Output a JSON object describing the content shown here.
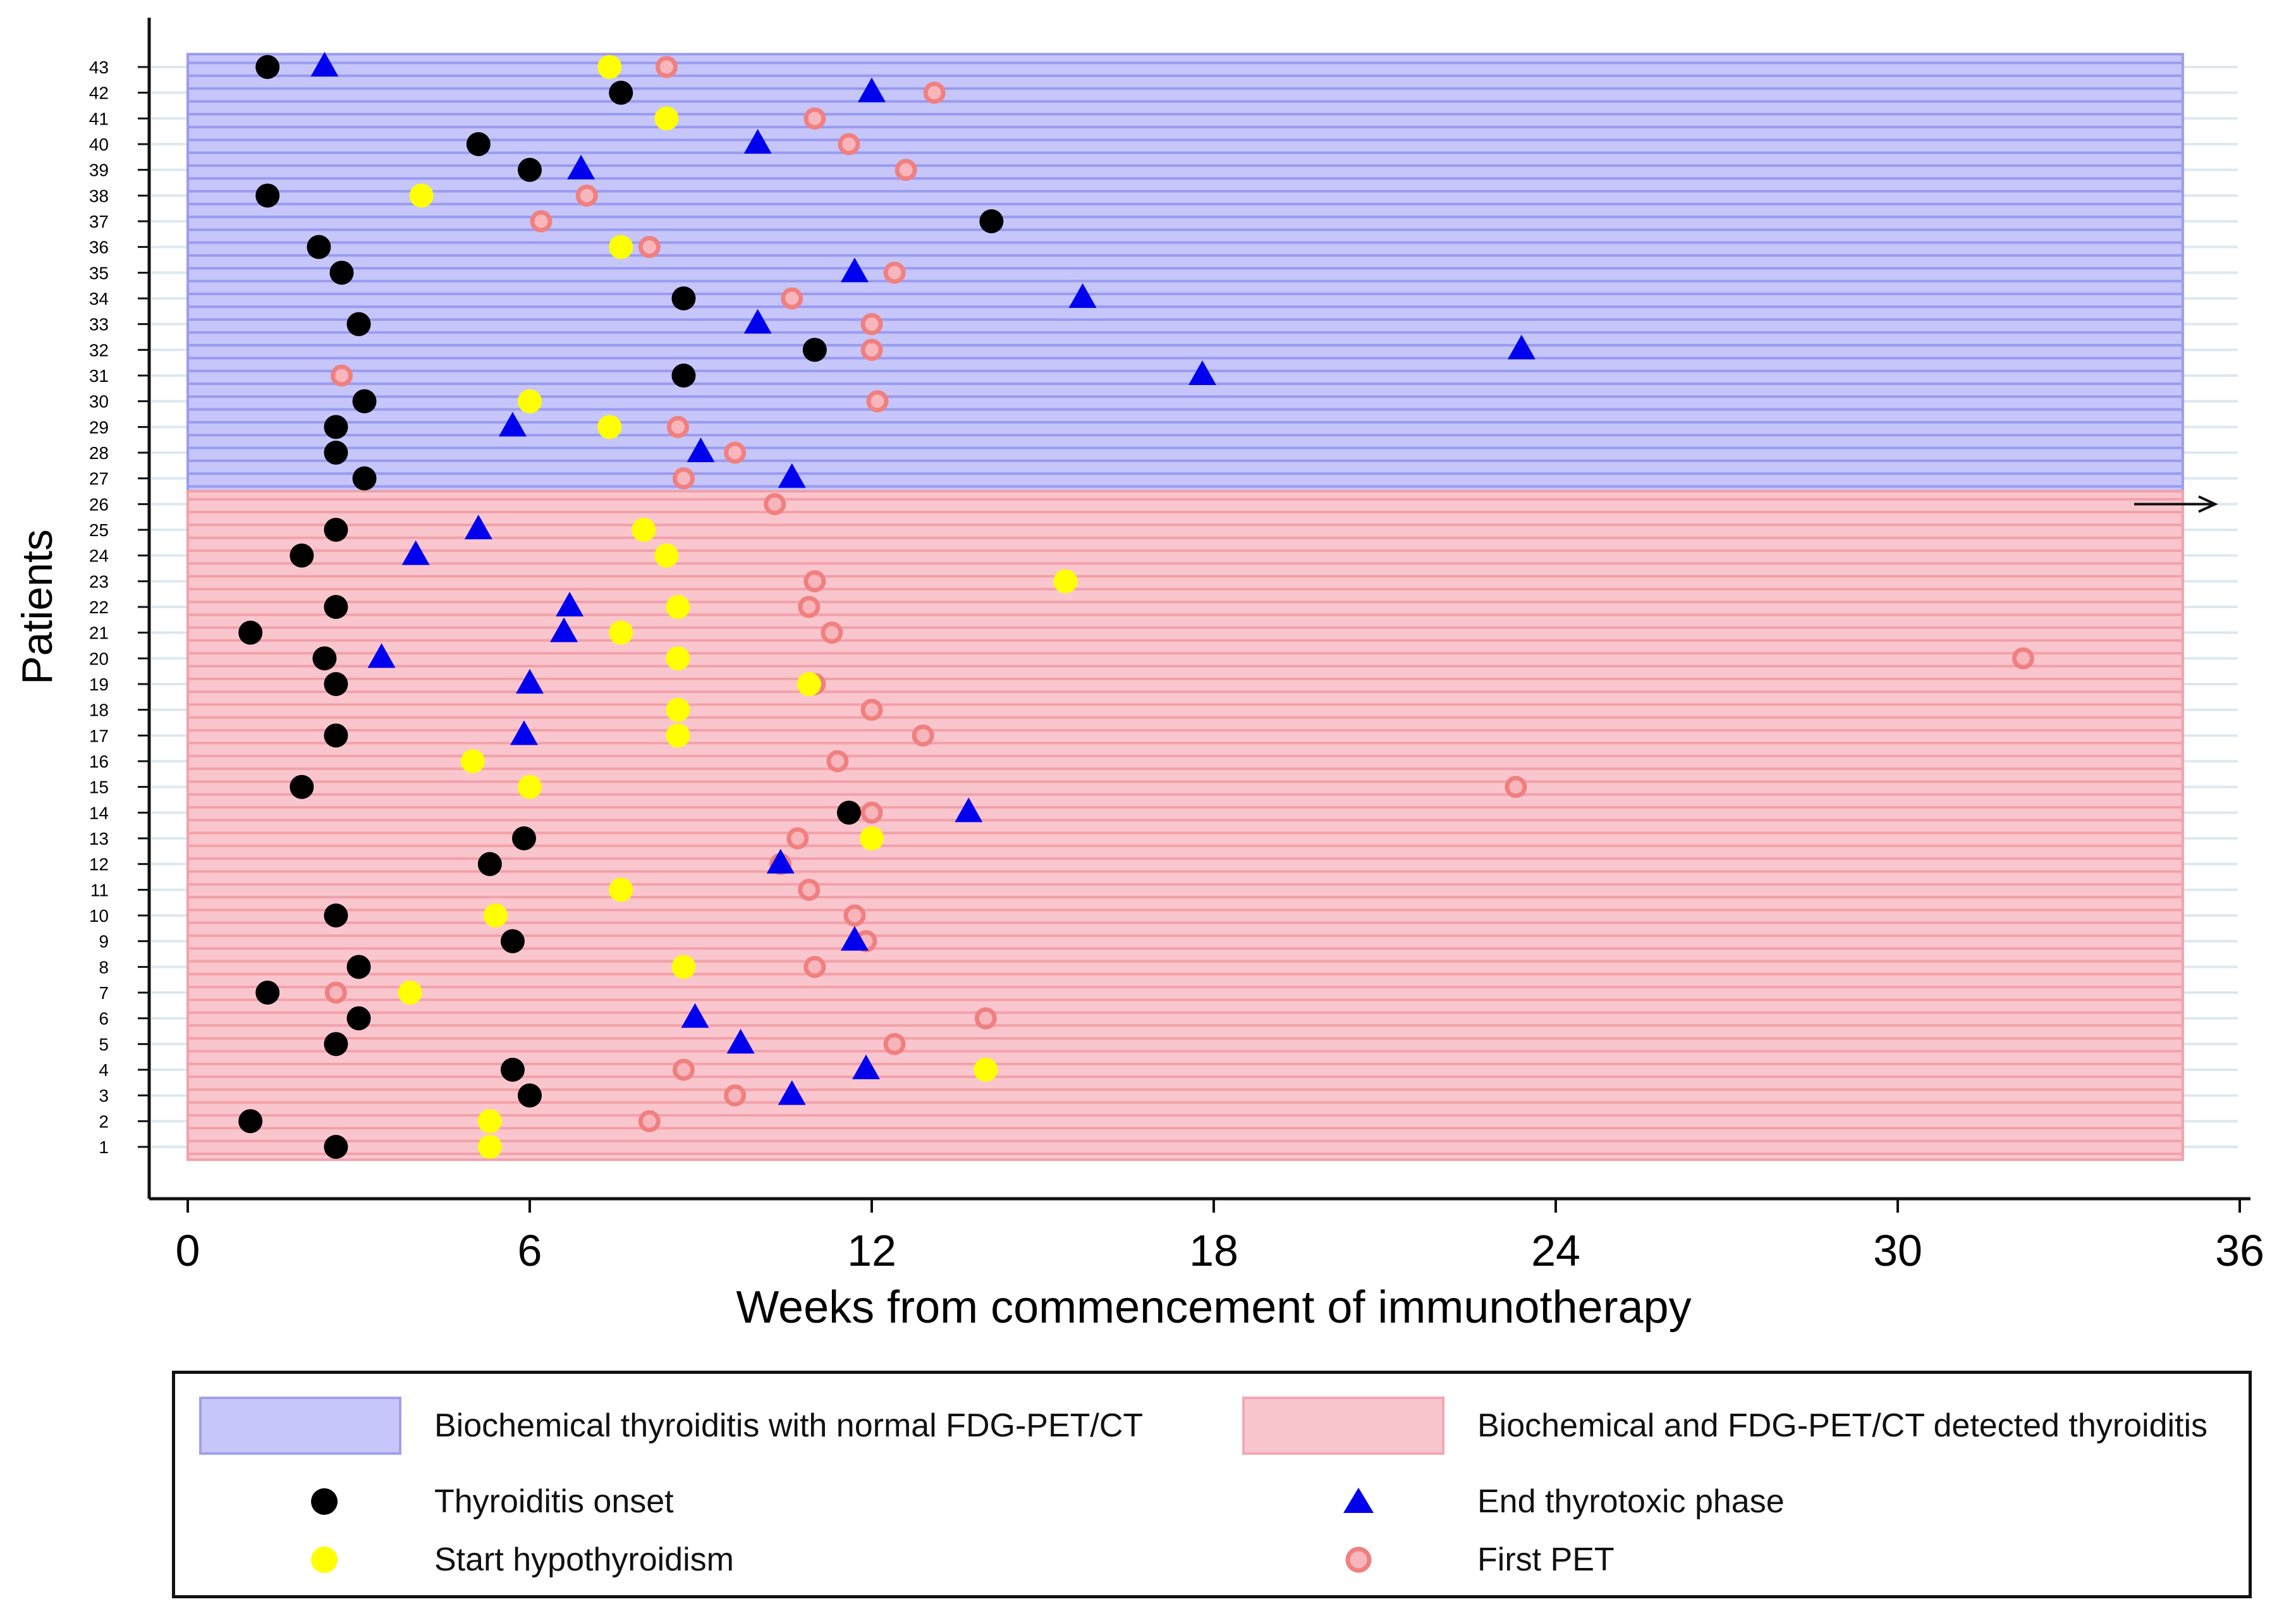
{
  "chart_data": {
    "type": "scatter",
    "title": "",
    "xlabel": "Weeks from commencement of immunotherapy",
    "ylabel": "Patients",
    "xlim": [
      0,
      36
    ],
    "x_ticks": [
      "0",
      "6",
      "12",
      "18",
      "24",
      "30",
      "36"
    ],
    "x_tick_values": [
      0,
      6,
      12,
      18,
      24,
      30,
      36
    ],
    "ylim": [
      1,
      43
    ],
    "y_ticks": [
      "1",
      "2",
      "3",
      "4",
      "5",
      "6",
      "7",
      "8",
      "9",
      "10",
      "11",
      "12",
      "13",
      "14",
      "15",
      "16",
      "17",
      "18",
      "19",
      "20",
      "21",
      "22",
      "23",
      "24",
      "25",
      "26",
      "27",
      "28",
      "29",
      "30",
      "31",
      "32",
      "33",
      "34",
      "35",
      "36",
      "37",
      "38",
      "39",
      "40",
      "41",
      "42",
      "43"
    ],
    "grid": false,
    "legend_position": "bottom",
    "arrow_on_patient": 26,
    "bands": [
      {
        "name": "Biochemical thyroiditis with normal FDG-PET/CT",
        "patients_from": 27,
        "patients_to": 43,
        "x_from": 0,
        "x_to": 35,
        "color": "#c2c2f8"
      },
      {
        "name": "Biochemical and FDG-PET/CT detected thyroiditis",
        "patients_from": 1,
        "patients_to": 26,
        "x_from": 0,
        "x_to": 35,
        "color": "#f8c0c8"
      }
    ],
    "series": [
      {
        "name": "Thyroiditis onset",
        "marker": "circle",
        "color": "#000000",
        "points": [
          {
            "patient": 43,
            "x": 1.4
          },
          {
            "patient": 42,
            "x": 7.6
          },
          {
            "patient": 40,
            "x": 5.1
          },
          {
            "patient": 39,
            "x": 6.0
          },
          {
            "patient": 38,
            "x": 1.4
          },
          {
            "patient": 37,
            "x": 14.1
          },
          {
            "patient": 36,
            "x": 2.3
          },
          {
            "patient": 35,
            "x": 2.7
          },
          {
            "patient": 34,
            "x": 8.7
          },
          {
            "patient": 33,
            "x": 3.0
          },
          {
            "patient": 32,
            "x": 11.0
          },
          {
            "patient": 31,
            "x": 8.7
          },
          {
            "patient": 30,
            "x": 3.1
          },
          {
            "patient": 29,
            "x": 2.6
          },
          {
            "patient": 28,
            "x": 2.6
          },
          {
            "patient": 27,
            "x": 3.1
          },
          {
            "patient": 25,
            "x": 2.6
          },
          {
            "patient": 24,
            "x": 2.0
          },
          {
            "patient": 22,
            "x": 2.6
          },
          {
            "patient": 21,
            "x": 1.1
          },
          {
            "patient": 20,
            "x": 2.4
          },
          {
            "patient": 19,
            "x": 2.6
          },
          {
            "patient": 17,
            "x": 2.6
          },
          {
            "patient": 15,
            "x": 2.0
          },
          {
            "patient": 14,
            "x": 11.6
          },
          {
            "patient": 13,
            "x": 5.9
          },
          {
            "patient": 12,
            "x": 5.3
          },
          {
            "patient": 10,
            "x": 2.6
          },
          {
            "patient": 9,
            "x": 5.7
          },
          {
            "patient": 8,
            "x": 3.0
          },
          {
            "patient": 7,
            "x": 1.4
          },
          {
            "patient": 6,
            "x": 3.0
          },
          {
            "patient": 5,
            "x": 2.6
          },
          {
            "patient": 4,
            "x": 5.7
          },
          {
            "patient": 3,
            "x": 6.0
          },
          {
            "patient": 2,
            "x": 1.1
          },
          {
            "patient": 1,
            "x": 2.6
          }
        ]
      },
      {
        "name": "Start hypothyroidism",
        "marker": "circle",
        "color": "#ffff00",
        "points": [
          {
            "patient": 43,
            "x": 7.4
          },
          {
            "patient": 41,
            "x": 8.4
          },
          {
            "patient": 38,
            "x": 4.1
          },
          {
            "patient": 36,
            "x": 7.6
          },
          {
            "patient": 30,
            "x": 6.0
          },
          {
            "patient": 29,
            "x": 7.4
          },
          {
            "patient": 25,
            "x": 8.0
          },
          {
            "patient": 24,
            "x": 8.4
          },
          {
            "patient": 23,
            "x": 15.4
          },
          {
            "patient": 22,
            "x": 8.6
          },
          {
            "patient": 21,
            "x": 7.6
          },
          {
            "patient": 20,
            "x": 8.6
          },
          {
            "patient": 19,
            "x": 10.9
          },
          {
            "patient": 18,
            "x": 8.6
          },
          {
            "patient": 17,
            "x": 8.6
          },
          {
            "patient": 16,
            "x": 5.0
          },
          {
            "patient": 15,
            "x": 6.0
          },
          {
            "patient": 13,
            "x": 12.0
          },
          {
            "patient": 11,
            "x": 7.6
          },
          {
            "patient": 10,
            "x": 5.4
          },
          {
            "patient": 8,
            "x": 8.7
          },
          {
            "patient": 7,
            "x": 3.9
          },
          {
            "patient": 4,
            "x": 14.0
          },
          {
            "patient": 2,
            "x": 5.3
          },
          {
            "patient": 1,
            "x": 5.3
          }
        ]
      },
      {
        "name": "End thyrotoxic phase",
        "marker": "triangle",
        "color": "#0000ee",
        "points": [
          {
            "patient": 43,
            "x": 2.4
          },
          {
            "patient": 42,
            "x": 12.0
          },
          {
            "patient": 40,
            "x": 10.0
          },
          {
            "patient": 39,
            "x": 6.9
          },
          {
            "patient": 35,
            "x": 11.7
          },
          {
            "patient": 34,
            "x": 15.7
          },
          {
            "patient": 33,
            "x": 10.0
          },
          {
            "patient": 32,
            "x": 23.4
          },
          {
            "patient": 31,
            "x": 17.8
          },
          {
            "patient": 29,
            "x": 5.7
          },
          {
            "patient": 28,
            "x": 9.0
          },
          {
            "patient": 27,
            "x": 10.6
          },
          {
            "patient": 25,
            "x": 5.1
          },
          {
            "patient": 24,
            "x": 4.0
          },
          {
            "patient": 22,
            "x": 6.7
          },
          {
            "patient": 21,
            "x": 6.6
          },
          {
            "patient": 20,
            "x": 3.4
          },
          {
            "patient": 19,
            "x": 6.0
          },
          {
            "patient": 17,
            "x": 5.9
          },
          {
            "patient": 14,
            "x": 13.7
          },
          {
            "patient": 12,
            "x": 10.4
          },
          {
            "patient": 9,
            "x": 11.7
          },
          {
            "patient": 6,
            "x": 8.9
          },
          {
            "patient": 5,
            "x": 9.7
          },
          {
            "patient": 4,
            "x": 11.9
          },
          {
            "patient": 3,
            "x": 10.6
          }
        ]
      },
      {
        "name": "First PET",
        "marker": "ring",
        "color": "#f08080",
        "points": [
          {
            "patient": 43,
            "x": 8.4
          },
          {
            "patient": 42,
            "x": 13.1
          },
          {
            "patient": 41,
            "x": 11.0
          },
          {
            "patient": 40,
            "x": 11.6
          },
          {
            "patient": 39,
            "x": 12.6
          },
          {
            "patient": 38,
            "x": 7.0
          },
          {
            "patient": 37,
            "x": 6.2
          },
          {
            "patient": 36,
            "x": 8.1
          },
          {
            "patient": 35,
            "x": 12.4
          },
          {
            "patient": 34,
            "x": 10.6
          },
          {
            "patient": 33,
            "x": 12.0
          },
          {
            "patient": 32,
            "x": 12.0
          },
          {
            "patient": 31,
            "x": 2.7
          },
          {
            "patient": 30,
            "x": 12.1
          },
          {
            "patient": 29,
            "x": 8.6
          },
          {
            "patient": 28,
            "x": 9.6
          },
          {
            "patient": 27,
            "x": 8.7
          },
          {
            "patient": 26,
            "x": 10.3
          },
          {
            "patient": 24,
            "x": 8.4
          },
          {
            "patient": 23,
            "x": 11.0
          },
          {
            "patient": 22,
            "x": 10.9
          },
          {
            "patient": 21,
            "x": 11.3
          },
          {
            "patient": 20,
            "x": 32.2
          },
          {
            "patient": 19,
            "x": 11.0
          },
          {
            "patient": 18,
            "x": 12.0
          },
          {
            "patient": 17,
            "x": 12.9
          },
          {
            "patient": 16,
            "x": 11.4
          },
          {
            "patient": 15,
            "x": 23.3
          },
          {
            "patient": 14,
            "x": 12.0
          },
          {
            "patient": 13,
            "x": 10.7
          },
          {
            "patient": 12,
            "x": 10.4
          },
          {
            "patient": 11,
            "x": 10.9
          },
          {
            "patient": 10,
            "x": 11.7
          },
          {
            "patient": 9,
            "x": 11.9
          },
          {
            "patient": 8,
            "x": 11.0
          },
          {
            "patient": 7,
            "x": 2.6
          },
          {
            "patient": 6,
            "x": 14.0
          },
          {
            "patient": 5,
            "x": 12.4
          },
          {
            "patient": 4,
            "x": 8.7
          },
          {
            "patient": 3,
            "x": 9.6
          },
          {
            "patient": 2,
            "x": 8.1
          },
          {
            "patient": 1,
            "x": 5.3
          }
        ]
      }
    ]
  },
  "legend": {
    "band_blue_label": "Biochemical thyroiditis with normal FDG-PET/CT",
    "band_red_label": "Biochemical and FDG-PET/CT detected thyroiditis",
    "onset_label": "Thyroiditis onset",
    "end_label": "End thyrotoxic phase",
    "hypo_label": "Start hypothyroidism",
    "pet_label": "First PET"
  }
}
